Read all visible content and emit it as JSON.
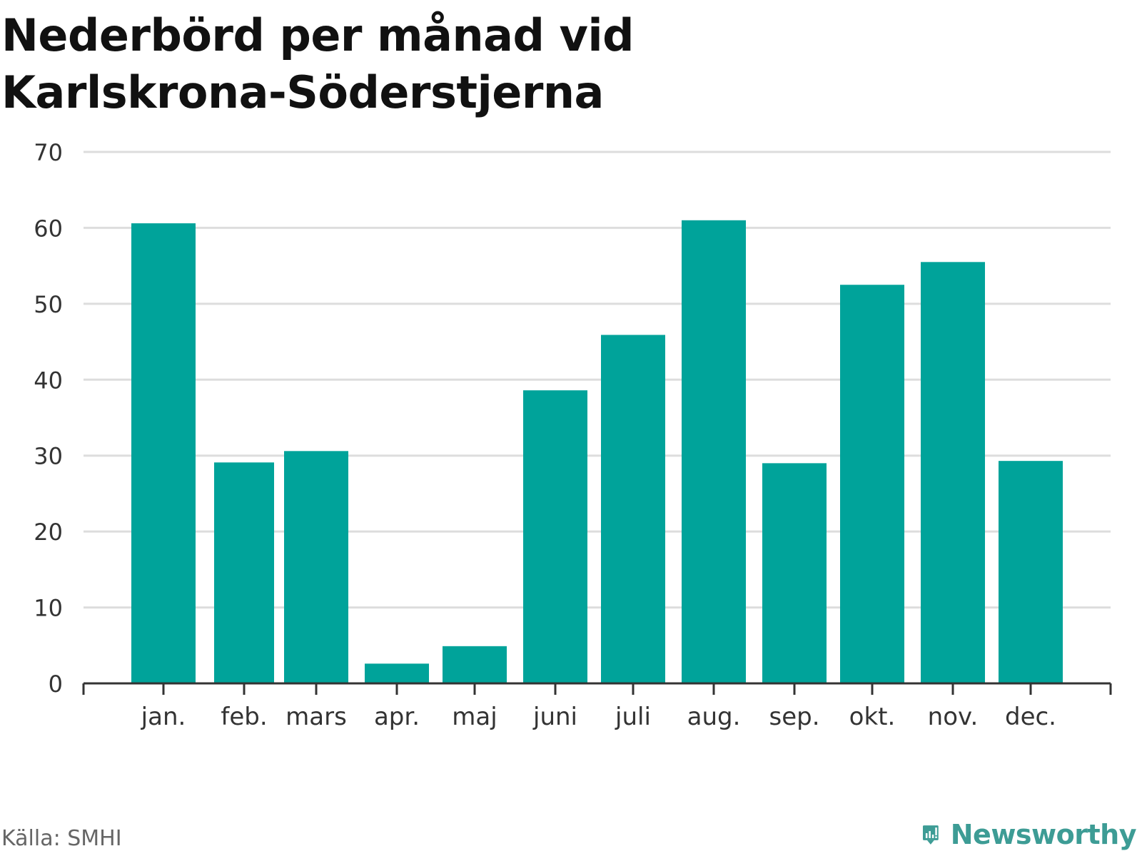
{
  "title": {
    "line1": "Nederbörd per månad vid",
    "line2": "Karlskrona-Söderstjerna"
  },
  "source": "Källa: SMHI",
  "brand": {
    "name": "Newsworthy",
    "icon": "newsworthy-logo-icon",
    "color": "#3d9c95"
  },
  "colors": {
    "bar": "#00a39a",
    "grid": "#dddddd",
    "axis": "#333333"
  },
  "chart_data": {
    "type": "bar",
    "categories": [
      "jan.",
      "feb.",
      "mars",
      "apr.",
      "maj",
      "juni",
      "juli",
      "aug.",
      "sep.",
      "okt.",
      "nov.",
      "dec."
    ],
    "values": [
      60.6,
      29.1,
      30.6,
      2.6,
      4.9,
      38.6,
      45.9,
      61.0,
      29.0,
      52.5,
      55.5,
      29.3
    ],
    "yticks": [
      0,
      10,
      20,
      30,
      40,
      50,
      60,
      70
    ],
    "ylim": [
      0,
      70
    ],
    "grid": true,
    "legend": "none"
  }
}
